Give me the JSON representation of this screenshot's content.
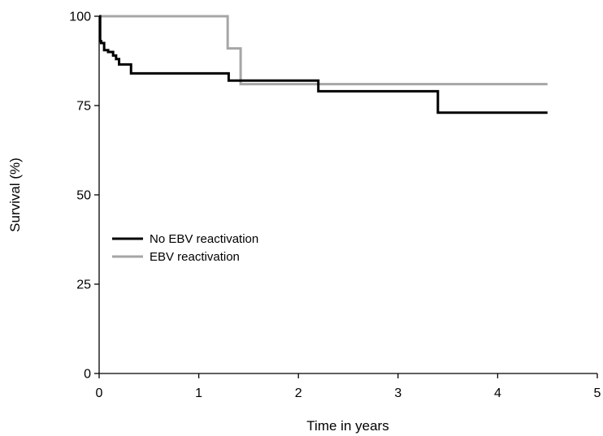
{
  "chart_data": {
    "type": "line",
    "step": true,
    "title": "",
    "xlabel": "Time in years",
    "ylabel": "Survival (%)",
    "xlim": [
      0,
      5
    ],
    "ylim": [
      0,
      100
    ],
    "xticks": [
      0,
      1,
      2,
      3,
      4,
      5
    ],
    "yticks": [
      0,
      25,
      50,
      75,
      100
    ],
    "grid": false,
    "legend_position": "center-left",
    "series": [
      {
        "name": "No EBV reactivation",
        "color": "#000000",
        "x": [
          0,
          0.01,
          0.02,
          0.05,
          0.09,
          0.14,
          0.17,
          0.2,
          0.25,
          0.32,
          1.3,
          2.2,
          3.4,
          4.5
        ],
        "y": [
          100,
          93,
          92.5,
          90.5,
          90,
          89,
          88,
          86.5,
          86.5,
          84,
          82,
          79,
          73,
          73
        ]
      },
      {
        "name": "EBV reactivation",
        "color": "#a6a6a6",
        "x": [
          0,
          1.29,
          1.42,
          4.5
        ],
        "y": [
          100,
          91,
          81,
          81
        ]
      }
    ]
  }
}
